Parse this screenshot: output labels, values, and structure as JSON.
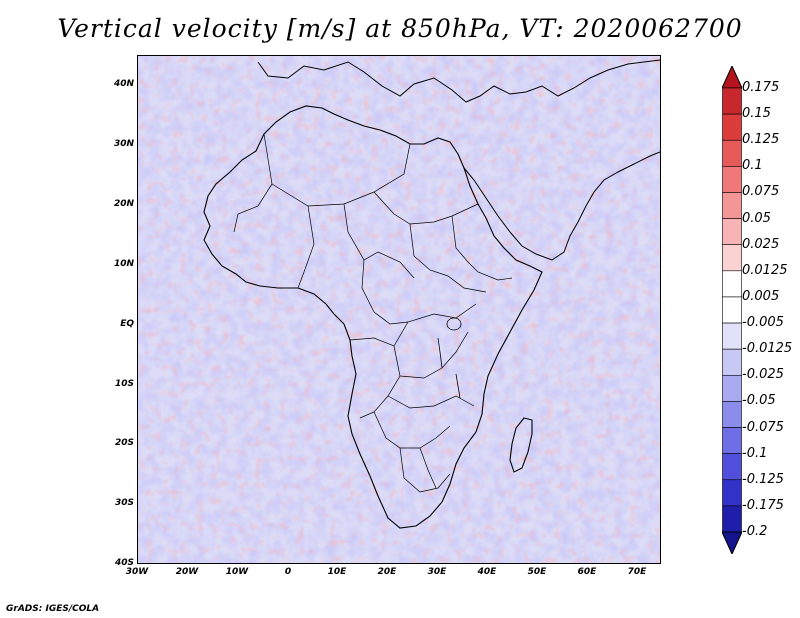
{
  "title": "Vertical velocity [m/s] at 850hPa, VT: 2020062700",
  "footer": "GrADS: IGES/COLA",
  "map": {
    "lon_range": [
      -30,
      75
    ],
    "lat_range": [
      -40,
      45
    ],
    "lon_ticks": [
      "30W",
      "20W",
      "10W",
      "0",
      "10E",
      "20E",
      "30E",
      "40E",
      "50E",
      "60E",
      "70E"
    ],
    "lat_ticks": [
      "40N",
      "30N",
      "20N",
      "10N",
      "EQ",
      "10S",
      "20S",
      "30S",
      "40S"
    ]
  },
  "colorbar": {
    "labels": [
      "0.175",
      "0.15",
      "0.125",
      "0.1",
      "0.075",
      "0.05",
      "0.025",
      "0.0125",
      "0.005",
      "-0.005",
      "-0.0125",
      "-0.025",
      "-0.05",
      "-0.075",
      "-0.1",
      "-0.125",
      "-0.175",
      "-0.2"
    ],
    "colors": [
      "#b4141e",
      "#c8282d",
      "#dc3c3c",
      "#e65a5a",
      "#f07878",
      "#f59696",
      "#f8b4b4",
      "#fbd2d2",
      "#ffffff",
      "#ffffff",
      "#e1e1fa",
      "#c8c8f5",
      "#aaaaf0",
      "#8c8cec",
      "#6e6ee6",
      "#5050dc",
      "#3232c8",
      "#1e1eaa",
      "#14148c"
    ]
  }
}
